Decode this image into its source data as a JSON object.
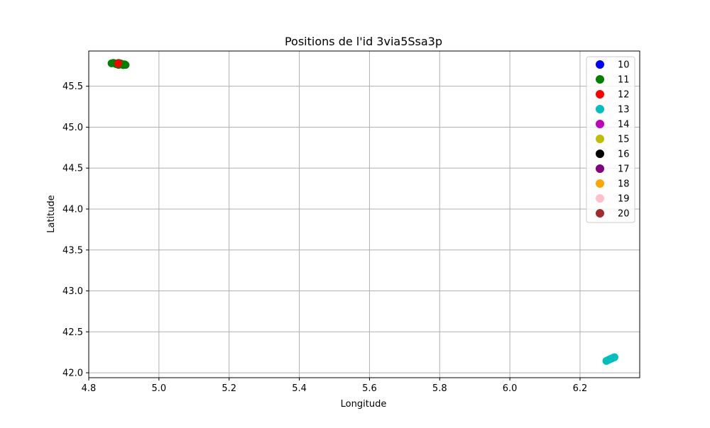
{
  "chart_data": {
    "type": "scatter",
    "title": "Positions de l'id 3via5Ssa3p",
    "xlabel": "Longitude",
    "ylabel": "Latitude",
    "xlim": [
      4.8,
      6.37
    ],
    "ylim": [
      41.94,
      45.93
    ],
    "xticks": [
      4.8,
      5.0,
      5.2,
      5.4,
      5.6,
      5.8,
      6.0,
      6.2
    ],
    "xtick_labels": [
      "4.8",
      "5.0",
      "5.2",
      "5.4",
      "5.6",
      "5.8",
      "6.0",
      "6.2"
    ],
    "yticks": [
      42.0,
      42.5,
      43.0,
      43.5,
      44.0,
      44.5,
      45.0,
      45.5
    ],
    "ytick_labels": [
      "42.0",
      "42.5",
      "43.0",
      "43.5",
      "44.0",
      "44.5",
      "45.0",
      "45.5"
    ],
    "grid": true,
    "legend_position": "top-right",
    "series": [
      {
        "name": "10",
        "color": "#0000ff",
        "points": []
      },
      {
        "name": "11",
        "color": "#008000",
        "points": [
          [
            4.865,
            45.78
          ],
          [
            4.87,
            45.785
          ],
          [
            4.875,
            45.78
          ],
          [
            4.88,
            45.775
          ],
          [
            4.885,
            45.785
          ],
          [
            4.89,
            45.78
          ],
          [
            4.895,
            45.77
          ],
          [
            4.9,
            45.765
          ],
          [
            4.905,
            45.76
          ],
          [
            4.885,
            45.76
          ],
          [
            4.878,
            45.77
          ],
          [
            4.892,
            45.775
          ],
          [
            4.898,
            45.758
          ],
          [
            4.902,
            45.768
          ]
        ]
      },
      {
        "name": "12",
        "color": "#ff0000",
        "points": [
          [
            4.884,
            45.778
          ]
        ]
      },
      {
        "name": "13",
        "color": "#00bfbf",
        "points": [
          [
            6.275,
            42.145
          ],
          [
            6.28,
            42.155
          ],
          [
            6.285,
            42.165
          ],
          [
            6.29,
            42.175
          ],
          [
            6.295,
            42.185
          ],
          [
            6.298,
            42.19
          ]
        ]
      },
      {
        "name": "14",
        "color": "#bf00bf",
        "points": []
      },
      {
        "name": "15",
        "color": "#bfbf00",
        "points": []
      },
      {
        "name": "16",
        "color": "#000000",
        "points": []
      },
      {
        "name": "17",
        "color": "#800080",
        "points": []
      },
      {
        "name": "18",
        "color": "#ffa500",
        "points": []
      },
      {
        "name": "19",
        "color": "#ffc0cb",
        "points": []
      },
      {
        "name": "20",
        "color": "#a52a2a",
        "points": []
      }
    ]
  }
}
